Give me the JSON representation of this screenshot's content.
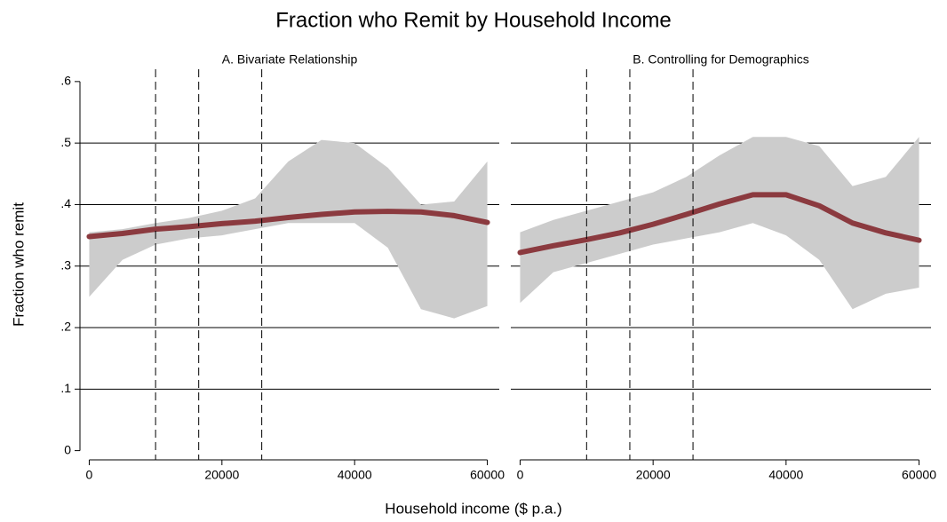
{
  "title": "Fraction who Remit by Household Income",
  "y_label": "Fraction who remit",
  "x_label": "Household income ($ p.a.)",
  "chart_data": [
    {
      "type": "line",
      "subtitle": "A. Bivariate Relationship",
      "x": [
        0,
        5000,
        10000,
        15000,
        20000,
        25000,
        30000,
        35000,
        40000,
        45000,
        50000,
        55000,
        60000
      ],
      "series": [
        {
          "color": "#8b3a3f",
          "values": [
            0.348,
            0.353,
            0.36,
            0.364,
            0.369,
            0.373,
            0.379,
            0.384,
            0.388,
            0.389,
            0.388,
            0.382,
            0.371
          ]
        }
      ],
      "band": {
        "color": "#cccccc",
        "lower": [
          0.25,
          0.31,
          0.335,
          0.345,
          0.35,
          0.36,
          0.37,
          0.37,
          0.37,
          0.33,
          0.23,
          0.215,
          0.235
        ],
        "upper": [
          0.355,
          0.36,
          0.37,
          0.378,
          0.39,
          0.41,
          0.47,
          0.505,
          0.5,
          0.46,
          0.4,
          0.405,
          0.47
        ]
      },
      "vlines": [
        10000,
        16500,
        26000
      ],
      "xlim": [
        -1400,
        61800
      ],
      "xticks": [
        0,
        20000,
        40000,
        60000
      ],
      "ylim": [
        -0.015,
        0.62
      ],
      "yticks": [
        0,
        {
          "value": 0.1,
          "label": ".1"
        },
        {
          "value": 0.2,
          "label": ".2"
        },
        {
          "value": 0.3,
          "label": ".3"
        },
        {
          "value": 0.4,
          "label": ".4"
        },
        {
          "value": 0.5,
          "label": ".5"
        },
        {
          "value": 0.6,
          "label": ".6"
        }
      ],
      "grid": true
    },
    {
      "type": "line",
      "subtitle": "B. Controlling for Demographics",
      "x": [
        0,
        5000,
        10000,
        15000,
        20000,
        25000,
        30000,
        35000,
        40000,
        45000,
        50000,
        55000,
        60000
      ],
      "series": [
        {
          "color": "#8b3a3f",
          "values": [
            0.322,
            0.333,
            0.343,
            0.354,
            0.368,
            0.384,
            0.401,
            0.416,
            0.416,
            0.398,
            0.37,
            0.354,
            0.342
          ]
        }
      ],
      "band": {
        "color": "#cccccc",
        "lower": [
          0.24,
          0.29,
          0.305,
          0.32,
          0.335,
          0.345,
          0.355,
          0.37,
          0.35,
          0.31,
          0.23,
          0.255,
          0.265
        ],
        "upper": [
          0.355,
          0.375,
          0.39,
          0.405,
          0.42,
          0.445,
          0.48,
          0.51,
          0.51,
          0.495,
          0.43,
          0.445,
          0.51
        ]
      },
      "vlines": [
        10000,
        16500,
        26000
      ],
      "xlim": [
        -1400,
        61800
      ],
      "xticks": [
        0,
        20000,
        40000,
        60000
      ],
      "ylim": [
        -0.015,
        0.62
      ],
      "yticks": [
        0,
        {
          "value": 0.1,
          "label": ".1"
        },
        {
          "value": 0.2,
          "label": ".2"
        },
        {
          "value": 0.3,
          "label": ".3"
        },
        {
          "value": 0.4,
          "label": ".4"
        },
        {
          "value": 0.5,
          "label": ".5"
        },
        {
          "value": 0.6,
          "label": ".6"
        }
      ],
      "grid": true
    }
  ]
}
